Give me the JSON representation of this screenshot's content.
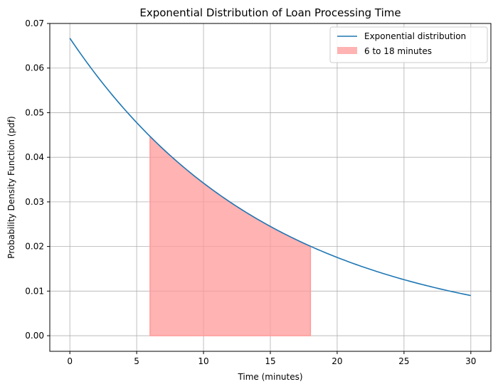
{
  "chart_data": {
    "type": "line",
    "title": "Exponential Distribution of Loan Processing Time",
    "xlabel": "Time (minutes)",
    "ylabel": "Probability Density Function (pdf)",
    "xlim": [
      -1.5,
      31.5
    ],
    "ylim": [
      -0.0035,
      0.07
    ],
    "x_ticks": [
      0,
      5,
      10,
      15,
      20,
      25,
      30
    ],
    "y_ticks": [
      0.0,
      0.01,
      0.02,
      0.03,
      0.04,
      0.05,
      0.06,
      0.07
    ],
    "x_tick_labels": [
      "0",
      "5",
      "10",
      "15",
      "20",
      "25",
      "30"
    ],
    "y_tick_labels": [
      "0.00",
      "0.01",
      "0.02",
      "0.03",
      "0.04",
      "0.05",
      "0.06",
      "0.07"
    ],
    "grid": true,
    "legend_position": "top-right",
    "series": [
      {
        "name": "Exponential distribution",
        "color": "#1f77b4",
        "x": [
          0,
          1,
          2,
          3,
          4,
          5,
          6,
          7,
          8,
          9,
          10,
          11,
          12,
          13,
          14,
          15,
          16,
          17,
          18,
          19,
          20,
          21,
          22,
          23,
          24,
          25,
          26,
          27,
          28,
          29,
          30
        ],
        "y": [
          0.0667,
          0.0623,
          0.0583,
          0.0546,
          0.051,
          0.0478,
          0.0447,
          0.0418,
          0.0391,
          0.0366,
          0.0342,
          0.032,
          0.0299,
          0.028,
          0.0262,
          0.0245,
          0.0229,
          0.0215,
          0.0201,
          0.0188,
          0.0176,
          0.0164,
          0.0154,
          0.0144,
          0.0135,
          0.0126,
          0.0118,
          0.011,
          0.0103,
          0.0097,
          0.009
        ]
      }
    ],
    "shaded_region": {
      "name": "6 to 18 minutes",
      "color": "#ff9999",
      "x_start": 6,
      "x_end": 18
    }
  }
}
